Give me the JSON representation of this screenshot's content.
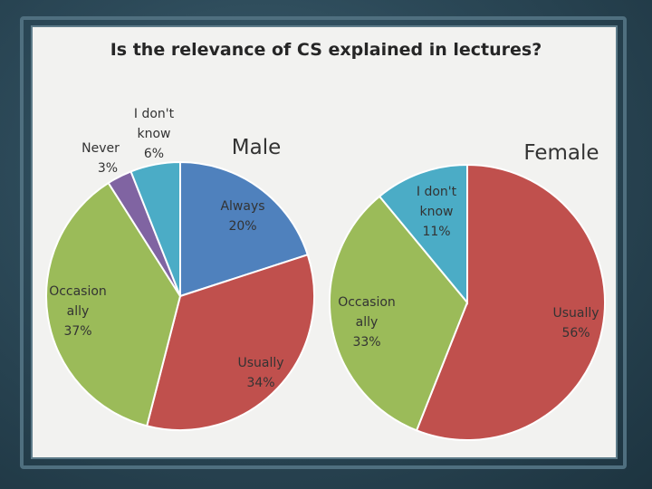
{
  "title": "Is the relevance of CS explained in lectures?",
  "chart_data": [
    {
      "type": "pie",
      "title": "Male",
      "slices": [
        {
          "label": "Always",
          "value": 20,
          "value_text": "20%",
          "color": "#4f81bd"
        },
        {
          "label": "Usually",
          "value": 34,
          "value_text": "34%",
          "color": "#c0504d"
        },
        {
          "label": "Occasion ally",
          "value": 37,
          "value_text": "37%",
          "color": "#9bbb59"
        },
        {
          "label": "Never",
          "value": 3,
          "value_text": "3%",
          "color": "#8064a2"
        },
        {
          "label": "I don't know",
          "value": 6,
          "value_text": "6%",
          "color": "#4bacc6"
        }
      ]
    },
    {
      "type": "pie",
      "title": "Female",
      "slices": [
        {
          "label": "Usually",
          "value": 56,
          "value_text": "56%",
          "color": "#c0504d"
        },
        {
          "label": "Occasion ally",
          "value": 33,
          "value_text": "33%",
          "color": "#9bbb59"
        },
        {
          "label": "I don't know",
          "value": 11,
          "value_text": "11%",
          "color": "#4bacc6"
        }
      ]
    }
  ]
}
